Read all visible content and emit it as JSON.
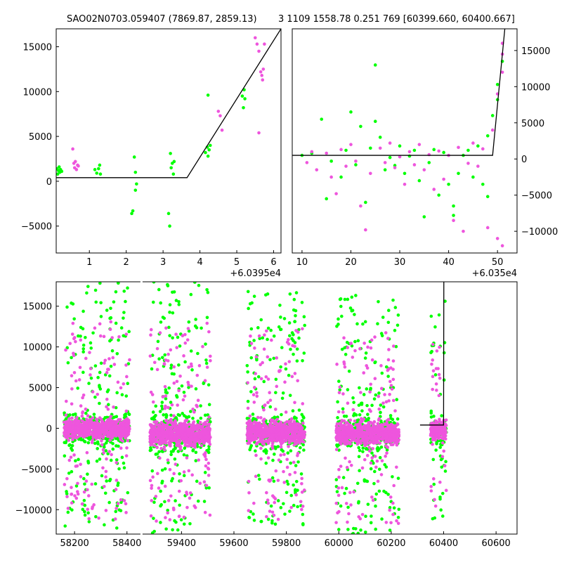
{
  "figure": {
    "title_left": "SAO02N0703.059407 (7869.87, 2859.13)",
    "title_right": "3 1109 1558.78 0.251 769 [60399.660, 60400.667]"
  },
  "colors": {
    "green": "#00ff00",
    "magenta": "#ee55dd",
    "line": "#000000"
  },
  "chart_data": [
    {
      "panel": "top-left",
      "type": "scatter",
      "title": "",
      "xlabel": "",
      "ylabel": "",
      "x_offset_label": "+6.0395e4",
      "xlim": [
        0.1,
        6.2
      ],
      "ylim": [
        -8000,
        17000
      ],
      "xticks": [
        1,
        2,
        3,
        4,
        5,
        6
      ],
      "yticks": [
        -5000,
        0,
        5000,
        10000,
        15000
      ],
      "ytick_side": "left",
      "series": [
        {
          "color": "green",
          "points": [
            [
              0.12,
              1400
            ],
            [
              0.14,
              800
            ],
            [
              0.16,
              1200
            ],
            [
              0.18,
              1600
            ],
            [
              0.2,
              1000
            ],
            [
              0.22,
              1300
            ],
            [
              0.25,
              1100
            ],
            [
              1.15,
              1300
            ],
            [
              1.2,
              900
            ],
            [
              1.25,
              1400
            ],
            [
              1.28,
              1800
            ],
            [
              1.3,
              800
            ],
            [
              2.15,
              -3600
            ],
            [
              2.18,
              -3300
            ],
            [
              2.22,
              2700
            ],
            [
              2.25,
              1000
            ],
            [
              2.25,
              -1000
            ],
            [
              2.28,
              -300
            ],
            [
              3.15,
              -3600
            ],
            [
              3.18,
              -5000
            ],
            [
              3.2,
              3100
            ],
            [
              3.22,
              1500
            ],
            [
              3.25,
              2000
            ],
            [
              3.28,
              800
            ],
            [
              3.3,
              2200
            ],
            [
              4.15,
              3200
            ],
            [
              4.2,
              3800
            ],
            [
              4.22,
              2800
            ],
            [
              4.25,
              3500
            ],
            [
              4.28,
              4000
            ],
            [
              4.22,
              9600
            ],
            [
              5.15,
              9500
            ],
            [
              5.18,
              8200
            ],
            [
              5.2,
              10200
            ],
            [
              5.22,
              9200
            ]
          ]
        },
        {
          "color": "magenta",
          "points": [
            [
              0.55,
              3600
            ],
            [
              0.58,
              2000
            ],
            [
              0.6,
              1500
            ],
            [
              0.62,
              2200
            ],
            [
              0.65,
              1300
            ],
            [
              0.68,
              1800
            ],
            [
              0.7,
              1700
            ],
            [
              4.5,
              7800
            ],
            [
              4.55,
              7300
            ],
            [
              4.6,
              5700
            ],
            [
              5.5,
              16000
            ],
            [
              5.55,
              15300
            ],
            [
              5.6,
              14500
            ],
            [
              5.6,
              5400
            ],
            [
              5.65,
              12200
            ],
            [
              5.68,
              11800
            ],
            [
              5.7,
              11300
            ],
            [
              5.72,
              12500
            ],
            [
              5.75,
              15300
            ]
          ]
        }
      ],
      "model_line": [
        [
          0.1,
          400
        ],
        [
          3.65,
          400
        ],
        [
          6.2,
          17000
        ]
      ]
    },
    {
      "panel": "top-right",
      "type": "scatter",
      "title": "",
      "xlabel": "",
      "ylabel": "",
      "x_offset_label": "+6.035e4",
      "xlim": [
        8,
        54
      ],
      "ylim": [
        -13000,
        18000
      ],
      "xticks": [
        10,
        20,
        30,
        40,
        50
      ],
      "yticks": [
        -10000,
        -5000,
        0,
        5000,
        10000,
        15000
      ],
      "ytick_side": "right",
      "series": [
        {
          "color": "green",
          "points": [
            [
              10,
              500
            ],
            [
              12,
              800
            ],
            [
              14,
              5500
            ],
            [
              15,
              -5500
            ],
            [
              16,
              -300
            ],
            [
              18,
              -2500
            ],
            [
              19,
              1200
            ],
            [
              20,
              6500
            ],
            [
              21,
              -800
            ],
            [
              22,
              4500
            ],
            [
              23,
              -6000
            ],
            [
              24,
              1500
            ],
            [
              25,
              13000
            ],
            [
              25,
              5200
            ],
            [
              26,
              3000
            ],
            [
              27,
              -1500
            ],
            [
              28,
              200
            ],
            [
              29,
              -900
            ],
            [
              30,
              1800
            ],
            [
              31,
              -2000
            ],
            [
              32,
              400
            ],
            [
              33,
              1200
            ],
            [
              34,
              -3000
            ],
            [
              35,
              -8000
            ],
            [
              36,
              -500
            ],
            [
              37,
              1300
            ],
            [
              38,
              -5000
            ],
            [
              39,
              900
            ],
            [
              40,
              -3500
            ],
            [
              41,
              -6500
            ],
            [
              41,
              -7800
            ],
            [
              42,
              -2000
            ],
            [
              43,
              500
            ],
            [
              44,
              1200
            ],
            [
              45,
              -2500
            ],
            [
              46,
              1800
            ],
            [
              47,
              -3500
            ],
            [
              48,
              3200
            ],
            [
              48,
              -5200
            ],
            [
              49,
              6000
            ],
            [
              50,
              8200
            ],
            [
              50,
              10300
            ],
            [
              51,
              13500
            ]
          ]
        },
        {
          "color": "magenta",
          "points": [
            [
              11,
              -500
            ],
            [
              12,
              1000
            ],
            [
              13,
              -1500
            ],
            [
              15,
              800
            ],
            [
              16,
              -2500
            ],
            [
              17,
              -4800
            ],
            [
              18,
              1300
            ],
            [
              19,
              -1000
            ],
            [
              20,
              2000
            ],
            [
              21,
              -300
            ],
            [
              22,
              -6500
            ],
            [
              23,
              -9800
            ],
            [
              24,
              -2000
            ],
            [
              26,
              1500
            ],
            [
              27,
              -500
            ],
            [
              28,
              2200
            ],
            [
              29,
              -1200
            ],
            [
              30,
              300
            ],
            [
              31,
              -3500
            ],
            [
              32,
              1000
            ],
            [
              33,
              -800
            ],
            [
              34,
              2000
            ],
            [
              35,
              -1500
            ],
            [
              36,
              600
            ],
            [
              37,
              -4200
            ],
            [
              38,
              1100
            ],
            [
              39,
              -2800
            ],
            [
              40,
              500
            ],
            [
              41,
              -8500
            ],
            [
              42,
              1600
            ],
            [
              43,
              -10000
            ],
            [
              44,
              -600
            ],
            [
              45,
              2200
            ],
            [
              46,
              -1000
            ],
            [
              47,
              1400
            ],
            [
              48,
              -9500
            ],
            [
              49,
              4000
            ],
            [
              50,
              9000
            ],
            [
              50,
              -11000
            ],
            [
              51,
              12000
            ],
            [
              51,
              14500
            ],
            [
              51,
              16000
            ],
            [
              51,
              -12000
            ]
          ]
        }
      ],
      "model_line": [
        [
          8,
          500
        ],
        [
          49,
          500
        ],
        [
          51.5,
          18000
        ]
      ]
    },
    {
      "panel": "bottom",
      "type": "scatter",
      "title": "",
      "xlabel": "",
      "ylabel": "",
      "xlim": [
        58130,
        60680
      ],
      "x_break": [
        58450,
        59250
      ],
      "ylim": [
        -13000,
        18000
      ],
      "xticks": [
        58200,
        58400,
        59400,
        59600,
        59800,
        60000,
        60200,
        60400,
        60600
      ],
      "yticks": [
        -10000,
        -5000,
        0,
        5000,
        10000,
        15000
      ],
      "ytick_side": "left",
      "clusters": [
        {
          "xmin": 58160,
          "xmax": 58410,
          "core": [
            -2200,
            2000
          ],
          "ymin": -12500,
          "ymax": 18000
        },
        {
          "xmin": 59280,
          "xmax": 59510,
          "core": [
            -3500,
            2200
          ],
          "ymin": -13000,
          "ymax": 18000
        },
        {
          "xmin": 59650,
          "xmax": 59870,
          "core": [
            -3000,
            2000
          ],
          "ymin": -12500,
          "ymax": 17000
        },
        {
          "xmin": 59990,
          "xmax": 60230,
          "core": [
            -3000,
            1800
          ],
          "ymin": -13000,
          "ymax": 16500
        },
        {
          "xmin": 60350,
          "xmax": 60410,
          "core": [
            -2500,
            2000
          ],
          "ymin": -11500,
          "ymax": 16000
        }
      ],
      "model_line": [
        [
          60310,
          400
        ],
        [
          60399.7,
          400
        ],
        [
          60400.7,
          18000
        ]
      ]
    }
  ]
}
